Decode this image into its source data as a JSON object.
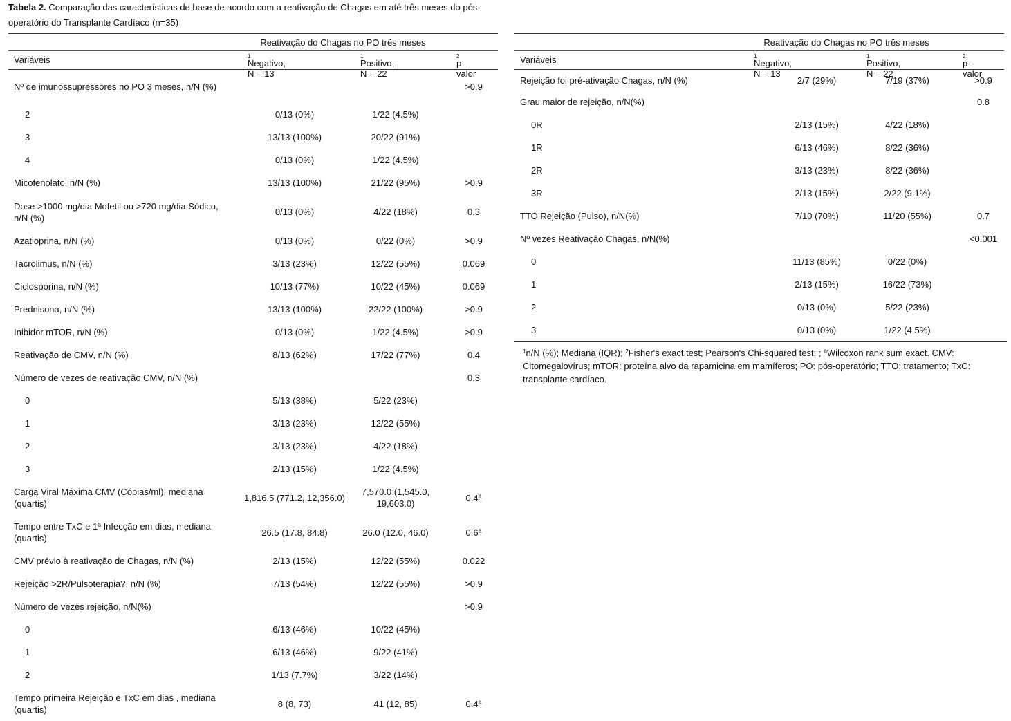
{
  "caption": {
    "label": "Tabela 2.",
    "text": " Comparação das características de base de acordo com a reativação de Chagas em até três meses do pós-operatório do Transplante Cardíaco (n=35)"
  },
  "table_header": {
    "group": "Reativação do Chagas no PO três meses",
    "variables": "Variáveis",
    "negative": "Negativo, N = 13",
    "positive": "Positivo, N = 22",
    "pvalue": "p-valor",
    "sup1": "1",
    "sup2": "2"
  },
  "left_rows": [
    {
      "var": "Nº de imunossupressores no PO 3 meses, n/N (%)",
      "neg": "",
      "pos": "",
      "p": ">0.9",
      "h": 48,
      "ind": false
    },
    {
      "var": "2",
      "neg": "0/13 (0%)",
      "pos": "1/22 (4.5%)",
      "p": "",
      "h": 33,
      "ind": true
    },
    {
      "var": "3",
      "neg": "13/13 (100%)",
      "pos": "20/22 (91%)",
      "p": "",
      "h": 33,
      "ind": true
    },
    {
      "var": "4",
      "neg": "0/13 (0%)",
      "pos": "1/22 (4.5%)",
      "p": "",
      "h": 33,
      "ind": true
    },
    {
      "var": "Micofenolato, n/N (%)",
      "neg": "13/13 (100%)",
      "pos": "21/22 (95%)",
      "p": ">0.9",
      "h": 33,
      "ind": false
    },
    {
      "var": "Dose >1000 mg/dia Mofetil ou >720 mg/dia Sódico, n/N (%)",
      "neg": "0/13 (0%)",
      "pos": "4/22 (18%)",
      "p": "0.3",
      "h": 51,
      "ind": false
    },
    {
      "var": "Azatioprina, n/N (%)",
      "neg": "0/13 (0%)",
      "pos": "0/22 (0%)",
      "p": ">0.9",
      "h": 33,
      "ind": false
    },
    {
      "var": "Tacrolimus, n/N (%)",
      "neg": "3/13 (23%)",
      "pos": "12/22 (55%)",
      "p": "0.069",
      "h": 33,
      "ind": false
    },
    {
      "var": "Ciclosporina, n/N (%)",
      "neg": "10/13 (77%)",
      "pos": "10/22 (45%)",
      "p": "0.069",
      "h": 33,
      "ind": false
    },
    {
      "var": "Prednisona, n/N (%)",
      "neg": "13/13 (100%)",
      "pos": "22/22 (100%)",
      "p": ">0.9",
      "h": 33,
      "ind": false
    },
    {
      "var": "Inibidor mTOR, n/N (%)",
      "neg": "0/13 (0%)",
      "pos": "1/22 (4.5%)",
      "p": ">0.9",
      "h": 33,
      "ind": false
    },
    {
      "var": "Reativação de CMV, n/N (%)",
      "neg": "8/13 (62%)",
      "pos": "17/22 (77%)",
      "p": "0.4",
      "h": 33,
      "ind": false
    },
    {
      "var": "Número de vezes de reativação CMV, n/N (%)",
      "neg": "",
      "pos": "",
      "p": "0.3",
      "h": 33,
      "ind": false
    },
    {
      "var": "0",
      "neg": "5/13 (38%)",
      "pos": "5/22 (23%)",
      "p": "",
      "h": 33,
      "ind": true
    },
    {
      "var": "1",
      "neg": "3/13 (23%)",
      "pos": "12/22 (55%)",
      "p": "",
      "h": 33,
      "ind": true
    },
    {
      "var": "2",
      "neg": "3/13 (23%)",
      "pos": "4/22 (18%)",
      "p": "",
      "h": 33,
      "ind": true
    },
    {
      "var": "3",
      "neg": "2/13 (15%)",
      "pos": "1/22 (4.5%)",
      "p": "",
      "h": 33,
      "ind": true
    },
    {
      "var": "Carga Viral Máxima CMV (Cópias/ml), mediana (quartis)",
      "neg": "1,816.5 (771.2, 12,356.0)",
      "pos": "7,570.0 (1,545.0, 19,603.0)",
      "p": "0.4ª",
      "h": 50,
      "ind": false
    },
    {
      "var": "Tempo entre TxC e 1ª Infecção em dias, mediana (quartis)",
      "neg": "26.5 (17.8, 84.8)",
      "pos": "26.0 (12.0, 46.0)",
      "p": "0.6ª",
      "h": 50,
      "ind": false
    },
    {
      "var": "CMV prévio à reativação de Chagas, n/N (%)",
      "neg": "2/13 (15%)",
      "pos": "12/22 (55%)",
      "p": "0.022",
      "h": 33,
      "ind": false
    },
    {
      "var": "Rejeição >2R/Pulsoterapia?, n/N (%)",
      "neg": "7/13 (54%)",
      "pos": "12/22 (55%)",
      "p": ">0.9",
      "h": 33,
      "ind": false
    },
    {
      "var": "Número de vezes rejeição, n/N(%)",
      "neg": "",
      "pos": "",
      "p": ">0.9",
      "h": 33,
      "ind": false
    },
    {
      "var": "0",
      "neg": "6/13 (46%)",
      "pos": "10/22 (45%)",
      "p": "",
      "h": 33,
      "ind": true
    },
    {
      "var": "1",
      "neg": "6/13 (46%)",
      "pos": "9/22 (41%)",
      "p": "",
      "h": 33,
      "ind": true
    },
    {
      "var": "2",
      "neg": "1/13 (7.7%)",
      "pos": "3/22 (14%)",
      "p": "",
      "h": 33,
      "ind": true
    },
    {
      "var": "Tempo primeira Rejeição e TxC em dias , mediana (quartis)",
      "neg": "8 (8, 73)",
      "pos": "41 (12, 85)",
      "p": "0.4ª",
      "h": 50,
      "ind": false
    }
  ],
  "right_rows": [
    {
      "var": "Rejeição foi pré-ativação Chagas, n/N (%)",
      "neg": "2/7 (29%)",
      "pos": "7/19 (37%)",
      "p": ">0.9",
      "h": 30,
      "ind": false
    },
    {
      "var": "Grau maior de rejeição, n/N(%)",
      "neg": "",
      "pos": "",
      "p": "0.8",
      "h": 33,
      "ind": false
    },
    {
      "var": "0R",
      "neg": "2/13 (15%)",
      "pos": "4/22 (18%)",
      "p": "",
      "h": 33,
      "ind": true
    },
    {
      "var": "1R",
      "neg": "6/13 (46%)",
      "pos": "8/22 (36%)",
      "p": "",
      "h": 33,
      "ind": true
    },
    {
      "var": "2R",
      "neg": "3/13 (23%)",
      "pos": "8/22 (36%)",
      "p": "",
      "h": 33,
      "ind": true
    },
    {
      "var": "3R",
      "neg": "2/13 (15%)",
      "pos": "2/22 (9.1%)",
      "p": "",
      "h": 33,
      "ind": true
    },
    {
      "var": "TTO Rejeição (Pulso), n/N(%)",
      "neg": "7/10 (70%)",
      "pos": "11/20 (55%)",
      "p": "0.7",
      "h": 33,
      "ind": false
    },
    {
      "var": "Nº vezes Reativação Chagas, n/N(%)",
      "neg": "",
      "pos": "",
      "p": "<0.001",
      "h": 33,
      "ind": false
    },
    {
      "var": "0",
      "neg": "11/13 (85%)",
      "pos": "0/22 (0%)",
      "p": "",
      "h": 33,
      "ind": true
    },
    {
      "var": "1",
      "neg": "2/13 (15%)",
      "pos": "16/22 (73%)",
      "p": "",
      "h": 33,
      "ind": true
    },
    {
      "var": "2",
      "neg": "0/13 (0%)",
      "pos": "5/22 (23%)",
      "p": "",
      "h": 33,
      "ind": true
    },
    {
      "var": "3",
      "neg": "0/13 (0%)",
      "pos": "1/22 (4.5%)",
      "p": "",
      "h": 33,
      "ind": true
    }
  ],
  "footnote": {
    "s1": "1",
    "t1": "n/N (%); Mediana (IQR); ",
    "s2": "2",
    "t2": "Fisher's exact test; Pearson's Chi-squared test; ; ªWilcoxon rank sum exact. CMV: Citomegalovírus; mTOR: proteína alvo da rapamicina em mamíferos; PO: pós-operatório; TTO: tratamento; TxC: transplante cardíaco."
  }
}
